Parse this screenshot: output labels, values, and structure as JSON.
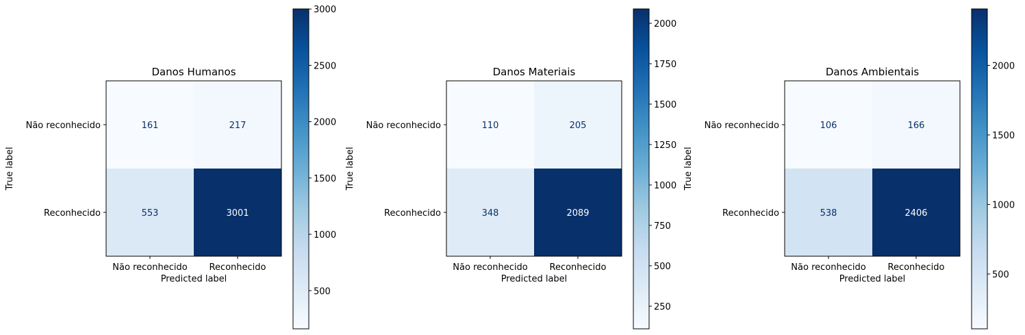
{
  "chart_data": [
    {
      "type": "heatmap",
      "title": "Danos Humanos",
      "xlabel": "Predicted label",
      "ylabel": "True label",
      "x_categories": [
        "Não reconhecido",
        "Reconhecido"
      ],
      "y_categories": [
        "Não reconhecido",
        "Reconhecido"
      ],
      "values": [
        [
          161,
          217
        ],
        [
          553,
          3001
        ]
      ],
      "colormap": "Blues",
      "colorbar": {
        "range": [
          161,
          3001
        ],
        "ticks": [
          500,
          1000,
          1500,
          2000,
          2500,
          3000
        ]
      }
    },
    {
      "type": "heatmap",
      "title": "Danos Materiais",
      "xlabel": "Predicted label",
      "ylabel": "True label",
      "x_categories": [
        "Não reconhecido",
        "Reconhecido"
      ],
      "y_categories": [
        "Não reconhecido",
        "Reconhecido"
      ],
      "values": [
        [
          110,
          205
        ],
        [
          348,
          2089
        ]
      ],
      "colormap": "Blues",
      "colorbar": {
        "range": [
          110,
          2089
        ],
        "ticks": [
          250,
          500,
          750,
          1000,
          1250,
          1500,
          1750,
          2000
        ]
      }
    },
    {
      "type": "heatmap",
      "title": "Danos Ambientais",
      "xlabel": "Predicted label",
      "ylabel": "True label",
      "x_categories": [
        "Não reconhecido",
        "Reconhecido"
      ],
      "y_categories": [
        "Não reconhecido",
        "Reconhecido"
      ],
      "values": [
        [
          106,
          166
        ],
        [
          538,
          2406
        ]
      ],
      "colormap": "Blues",
      "colorbar": {
        "range": [
          106,
          2406
        ],
        "ticks": [
          500,
          1000,
          1500,
          2000
        ]
      }
    }
  ]
}
